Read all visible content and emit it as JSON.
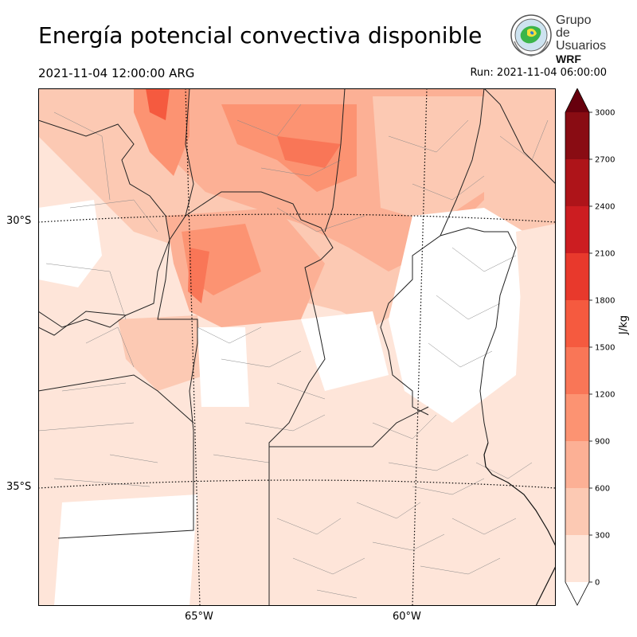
{
  "title": "Energía potencial convectiva disponible",
  "valid_time": "2021-11-04 12:00:00 ARG",
  "run_time": "Run: 2021-11-04 06:00:00",
  "logo": {
    "line1": "Grupo de",
    "line2": "Usuarios",
    "line3": "WRF"
  },
  "map": {
    "lat_labels": [
      "30°S",
      "35°S"
    ],
    "lon_labels": [
      "65°W",
      "60°W"
    ]
  },
  "colorbar": {
    "label": "J/kg",
    "ticks": [
      "0",
      "300",
      "600",
      "900",
      "1200",
      "1500",
      "1800",
      "2100",
      "2400",
      "2700",
      "3000"
    ],
    "colors": [
      "#fee5d9",
      "#fcc9b3",
      "#fcb095",
      "#fc9372",
      "#f97657",
      "#f55a3f",
      "#e8392c",
      "#cc1d21",
      "#ae1419",
      "#890c13"
    ],
    "extend_low": "#ffffff",
    "extend_high": "#67000d"
  }
}
